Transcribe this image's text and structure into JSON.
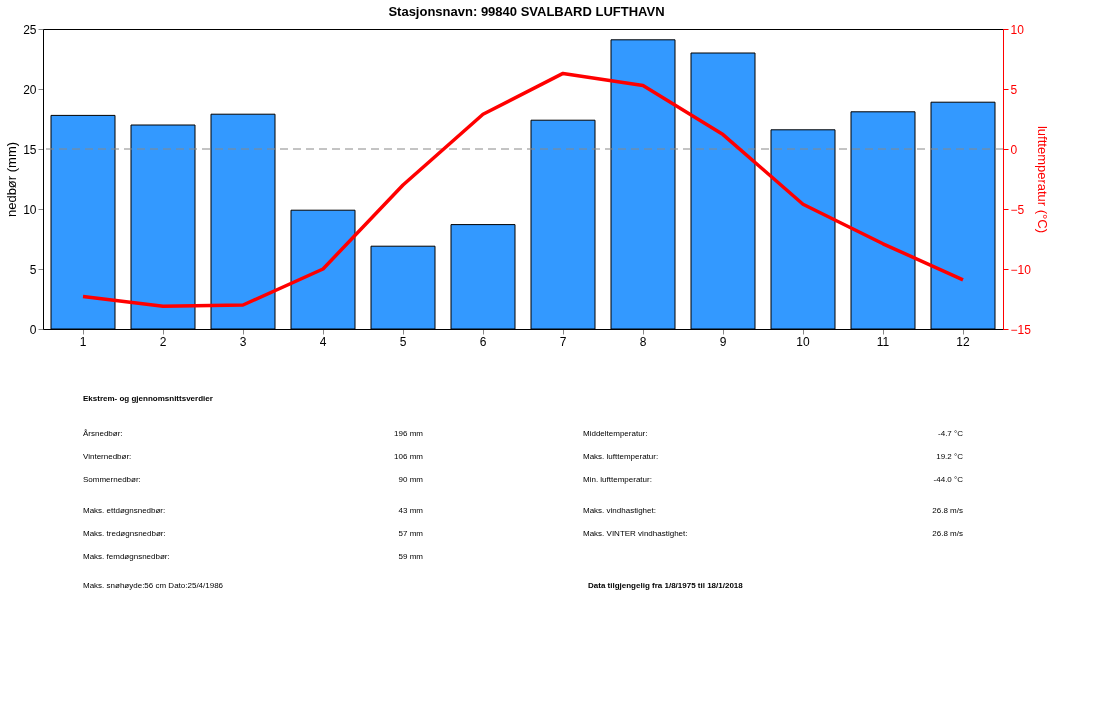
{
  "chart_data": {
    "type": "bar",
    "title": "Stasjonsnavn: 99840 SVALBARD LUFTHAVN",
    "categories": [
      "1",
      "2",
      "3",
      "4",
      "5",
      "6",
      "7",
      "8",
      "9",
      "10",
      "11",
      "12"
    ],
    "series": [
      {
        "color": "#3399ff",
        "values": [
          17.8,
          17.0,
          17.9,
          9.9,
          6.9,
          8.7,
          17.4,
          24.1,
          23.0,
          16.6,
          18.1,
          18.9
        ]
      },
      {
        "type": "line",
        "axis": "y2",
        "color": "#ff0000",
        "values": [
          -12.3,
          -13.1,
          -13.0,
          -10.0,
          -3.0,
          2.9,
          6.3,
          5.3,
          1.2,
          -4.6,
          -7.9,
          -10.9
        ]
      }
    ],
    "ylabel": "nedbør (mm)",
    "y2label": "lufttemperatur (°C)",
    "ylim": [
      0,
      25
    ],
    "yticks": [
      0,
      5,
      10,
      15,
      20,
      25
    ],
    "y2lim": [
      -15,
      10
    ],
    "y2ticks": [
      -15,
      -10,
      -5,
      0,
      5,
      10
    ],
    "ref_lines": [
      {
        "axis": "y2",
        "value": 0,
        "color": "#888888",
        "line_style": "dashed"
      }
    ],
    "annotations": [
      "Ekstrem- og gjennomsnittsverdier",
      "Årsnedbør:",
      "196 mm",
      "Vinternedbør:",
      "106 mm",
      "Sommernedbør:",
      "90 mm",
      "Maks. ettdøgnsnedbør:",
      "43 mm",
      "Maks. tredøgnsnedbør:",
      "57 mm",
      "Maks. femdøgnsnedbør:",
      "59 mm",
      "Maks. snøhøyde:56 cm   Dato:25/4/1986",
      "Middeltemperatur:",
      "-4.7 °C",
      "Maks. lufttemperatur:",
      "19.2 °C",
      "Min. lufttemperatur:",
      "-44.0 °C",
      "Maks. vindhastighet:",
      "26.8 m/s",
      "Maks. VINTER vindhastighet:",
      "26.8 m/s",
      "Data tilgjengelig fra 1/8/1975 til 18/1/2018"
    ]
  }
}
